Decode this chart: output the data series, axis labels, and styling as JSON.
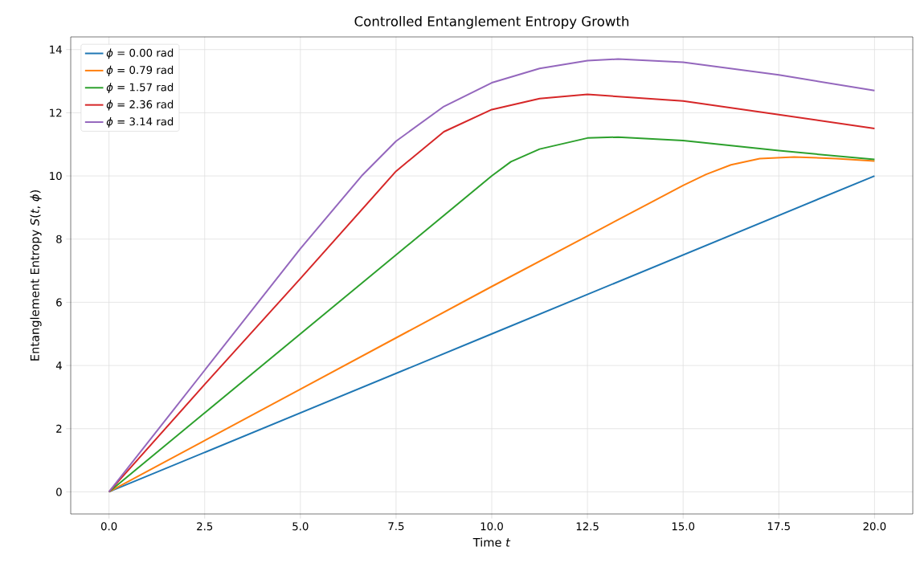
{
  "chart_data": {
    "type": "line",
    "title": "Controlled Entanglement Entropy Growth",
    "xlabel": "Time *t*",
    "ylabel": "Entanglement Entropy *S*(*t*, *ϕ*)",
    "xlim": [
      -1,
      21
    ],
    "ylim": [
      -0.7,
      14.4
    ],
    "xticks": [
      {
        "value": 0,
        "label": "0.0"
      },
      {
        "value": 2.5,
        "label": "2.5"
      },
      {
        "value": 5,
        "label": "5.0"
      },
      {
        "value": 7.5,
        "label": "7.5"
      },
      {
        "value": 10,
        "label": "10.0"
      },
      {
        "value": 12.5,
        "label": "12.5"
      },
      {
        "value": 15,
        "label": "15.0"
      },
      {
        "value": 17.5,
        "label": "17.5"
      },
      {
        "value": 20,
        "label": "20.0"
      }
    ],
    "yticks": [
      0,
      2,
      4,
      6,
      8,
      10,
      12,
      14
    ],
    "grid": true,
    "legend": "top left",
    "series": [
      {
        "name": "*ϕ* = 0.00 rad",
        "color": "#1f77b4",
        "x": [
          0,
          10,
          20
        ],
        "values": [
          0,
          5,
          10
        ]
      },
      {
        "name": "*ϕ* = 0.79 rad",
        "color": "#ff7f0e",
        "x": [
          0,
          5,
          10,
          12.5,
          15,
          15.6,
          16.25,
          17,
          17.9,
          19,
          20
        ],
        "values": [
          0,
          3.25,
          6.5,
          8.1,
          9.7,
          10.05,
          10.35,
          10.55,
          10.6,
          10.55,
          10.47
        ]
      },
      {
        "name": "*ϕ* = 1.57 rad",
        "color": "#2ca02c",
        "x": [
          0,
          5,
          10,
          10.5,
          11.25,
          12.5,
          13.3,
          15,
          17.5,
          20
        ],
        "values": [
          0,
          5,
          10,
          10.45,
          10.85,
          11.2,
          11.23,
          11.12,
          10.8,
          10.52
        ]
      },
      {
        "name": "*ϕ* = 2.36 rad",
        "color": "#d62728",
        "x": [
          0,
          2.5,
          5,
          7.5,
          8.75,
          10,
          11.25,
          12.5,
          15,
          17.5,
          20
        ],
        "values": [
          0,
          3.4,
          6.75,
          10.15,
          11.4,
          12.1,
          12.45,
          12.58,
          12.37,
          11.94,
          11.5
        ]
      },
      {
        "name": "*ϕ* = 3.14 rad",
        "color": "#9467bd",
        "x": [
          0,
          2.5,
          5,
          6.6,
          7.5,
          8.75,
          10,
          11.25,
          12.5,
          13.3,
          15,
          17.5,
          20
        ],
        "values": [
          0,
          3.85,
          7.7,
          10.0,
          11.1,
          12.2,
          12.95,
          13.4,
          13.65,
          13.7,
          13.6,
          13.2,
          12.7
        ]
      }
    ]
  }
}
